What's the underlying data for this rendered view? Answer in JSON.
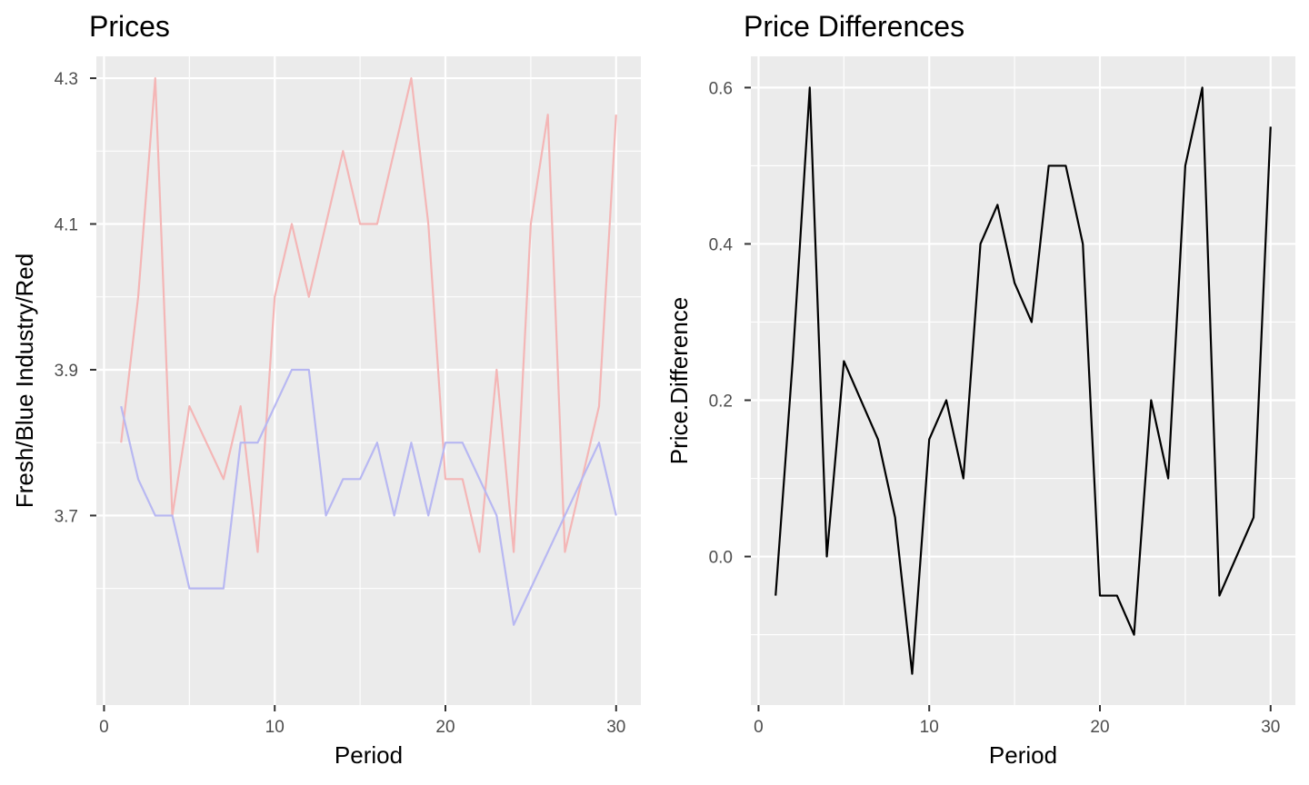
{
  "chart_data": [
    {
      "type": "line",
      "title": "Prices",
      "xlabel": "Period",
      "ylabel": "Fresh/Blue Industry/Red",
      "xlim": [
        -0.45,
        31.45
      ],
      "ylim": [
        3.44,
        4.33
      ],
      "xticks": [
        0,
        10,
        20,
        30
      ],
      "xtick_labels": [
        "0",
        "10",
        "20",
        "30"
      ],
      "yticks": [
        3.7,
        3.9,
        4.1,
        4.3
      ],
      "ytick_labels": [
        "3.7",
        "3.9",
        "4.1",
        "4.3"
      ],
      "x": [
        1,
        2,
        3,
        4,
        5,
        6,
        7,
        8,
        9,
        10,
        11,
        12,
        13,
        14,
        15,
        16,
        17,
        18,
        19,
        20,
        21,
        22,
        23,
        24,
        25,
        26,
        27,
        28,
        29,
        30
      ],
      "series": [
        {
          "color": "#F4B6B6",
          "values": [
            3.8,
            4.0,
            4.3,
            3.7,
            3.85,
            3.8,
            3.75,
            3.85,
            3.65,
            4.0,
            4.1,
            4.0,
            4.1,
            4.2,
            4.1,
            4.1,
            4.2,
            4.3,
            4.1,
            3.75,
            3.75,
            3.65,
            3.9,
            3.65,
            4.1,
            4.25,
            3.65,
            3.75,
            3.85,
            4.25
          ]
        },
        {
          "color": "#B8B8F2",
          "values": [
            3.85,
            3.75,
            3.7,
            3.7,
            3.6,
            3.6,
            3.6,
            3.8,
            3.8,
            3.85,
            3.9,
            3.9,
            3.7,
            3.75,
            3.75,
            3.8,
            3.7,
            3.8,
            3.7,
            3.8,
            3.8,
            3.75,
            3.7,
            3.55,
            3.6,
            3.65,
            3.7,
            3.75,
            3.8,
            3.7
          ]
        }
      ],
      "grid": true
    },
    {
      "type": "line",
      "title": "Price Differences",
      "xlabel": "Period",
      "ylabel": "Price.Difference",
      "xlim": [
        -0.45,
        31.45
      ],
      "ylim": [
        -0.19,
        0.64
      ],
      "xticks": [
        0,
        10,
        20,
        30
      ],
      "xtick_labels": [
        "0",
        "10",
        "20",
        "30"
      ],
      "yticks": [
        0.0,
        0.2,
        0.4,
        0.6
      ],
      "ytick_labels": [
        "0.0",
        "0.2",
        "0.4",
        "0.6"
      ],
      "x": [
        1,
        2,
        3,
        4,
        5,
        6,
        7,
        8,
        9,
        10,
        11,
        12,
        13,
        14,
        15,
        16,
        17,
        18,
        19,
        20,
        21,
        22,
        23,
        24,
        25,
        26,
        27,
        28,
        29,
        30
      ],
      "series": [
        {
          "color": "#000000",
          "values": [
            -0.05,
            0.25,
            0.6,
            0.0,
            0.25,
            0.2,
            0.15,
            0.05,
            -0.15,
            0.15,
            0.2,
            0.1,
            0.4,
            0.45,
            0.35,
            0.3,
            0.5,
            0.5,
            0.4,
            -0.05,
            -0.05,
            -0.1,
            0.2,
            0.1,
            0.5,
            0.6,
            -0.05,
            0.0,
            0.05,
            0.55
          ]
        }
      ],
      "grid": true
    }
  ]
}
